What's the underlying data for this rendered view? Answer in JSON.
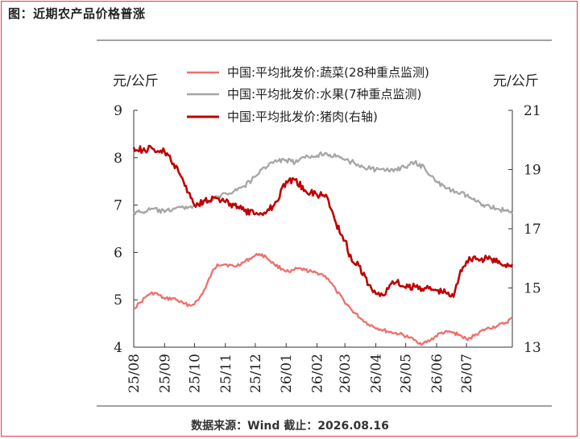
{
  "header": {
    "title": "图：近期农产品价格普涨"
  },
  "footer": {
    "source": "数据来源：Wind 截止：2026.08.16"
  },
  "colors": {
    "border": "#e8373b",
    "vegetables": "#ef6f6c",
    "fruit": "#a6a6a6",
    "pork": "#c00000"
  },
  "chart_data": {
    "type": "line",
    "title": "",
    "left_unit": "元/公斤",
    "right_unit": "元/公斤",
    "y_left": {
      "min": 4,
      "max": 9,
      "ticks": [
        "4",
        "5",
        "6",
        "7",
        "8",
        "9"
      ]
    },
    "y_right": {
      "min": 13,
      "max": 21,
      "ticks": [
        "13",
        "15",
        "17",
        "19",
        "21"
      ]
    },
    "x_ticks": [
      "25/08",
      "25/09",
      "25/10",
      "25/11",
      "25/12",
      "26/01",
      "26/02",
      "26/03",
      "26/04",
      "26/05",
      "26/06",
      "26/07"
    ],
    "legend_position": "top",
    "series": [
      {
        "name": "中国:平均批发价:蔬菜(28种重点监测)",
        "axis": "left",
        "color": "#ef6f6c",
        "points": [
          [
            "2025-08-01",
            4.82
          ],
          [
            "2025-08-08",
            4.95
          ],
          [
            "2025-08-15",
            5.1
          ],
          [
            "2025-08-22",
            5.15
          ],
          [
            "2025-09-01",
            5.02
          ],
          [
            "2025-09-10",
            5.03
          ],
          [
            "2025-09-20",
            4.92
          ],
          [
            "2025-09-28",
            4.88
          ],
          [
            "2025-10-05",
            5.0
          ],
          [
            "2025-10-12",
            5.25
          ],
          [
            "2025-10-18",
            5.55
          ],
          [
            "2025-10-24",
            5.75
          ],
          [
            "2025-11-01",
            5.75
          ],
          [
            "2025-11-10",
            5.7
          ],
          [
            "2025-11-20",
            5.8
          ],
          [
            "2025-11-28",
            5.9
          ],
          [
            "2025-12-05",
            5.97
          ],
          [
            "2025-12-12",
            5.9
          ],
          [
            "2025-12-20",
            5.75
          ],
          [
            "2025-12-28",
            5.65
          ],
          [
            "2026-01-05",
            5.58
          ],
          [
            "2026-01-12",
            5.66
          ],
          [
            "2026-01-20",
            5.63
          ],
          [
            "2026-01-28",
            5.58
          ],
          [
            "2026-02-05",
            5.55
          ],
          [
            "2026-02-12",
            5.45
          ],
          [
            "2026-02-20",
            5.2
          ],
          [
            "2026-02-28",
            4.98
          ],
          [
            "2026-03-08",
            4.78
          ],
          [
            "2026-03-16",
            4.62
          ],
          [
            "2026-03-25",
            4.48
          ],
          [
            "2026-04-05",
            4.38
          ],
          [
            "2026-04-15",
            4.32
          ],
          [
            "2026-04-25",
            4.28
          ],
          [
            "2026-05-05",
            4.2
          ],
          [
            "2026-05-12",
            4.12
          ],
          [
            "2026-05-18",
            4.07
          ],
          [
            "2026-05-26",
            4.15
          ],
          [
            "2026-06-05",
            4.3
          ],
          [
            "2026-06-15",
            4.32
          ],
          [
            "2026-06-25",
            4.25
          ],
          [
            "2026-07-02",
            4.15
          ],
          [
            "2026-07-10",
            4.27
          ],
          [
            "2026-07-20",
            4.38
          ],
          [
            "2026-08-01",
            4.45
          ],
          [
            "2026-08-10",
            4.52
          ],
          [
            "2026-08-16",
            4.62
          ]
        ]
      },
      {
        "name": "中国:平均批发价:水果(7种重点监测)",
        "axis": "left",
        "color": "#a6a6a6",
        "points": [
          [
            "2025-08-01",
            6.85
          ],
          [
            "2025-08-10",
            6.85
          ],
          [
            "2025-08-20",
            6.92
          ],
          [
            "2025-09-01",
            6.85
          ],
          [
            "2025-09-10",
            6.93
          ],
          [
            "2025-09-20",
            6.95
          ],
          [
            "2025-10-01",
            6.98
          ],
          [
            "2025-10-10",
            7.02
          ],
          [
            "2025-10-20",
            7.12
          ],
          [
            "2025-11-01",
            7.25
          ],
          [
            "2025-11-10",
            7.3
          ],
          [
            "2025-11-20",
            7.4
          ],
          [
            "2025-12-01",
            7.6
          ],
          [
            "2025-12-10",
            7.8
          ],
          [
            "2025-12-20",
            7.92
          ],
          [
            "2026-01-01",
            7.95
          ],
          [
            "2026-01-10",
            7.9
          ],
          [
            "2026-01-20",
            8.0
          ],
          [
            "2026-02-01",
            8.05
          ],
          [
            "2026-02-10",
            8.1
          ],
          [
            "2026-02-20",
            8.02
          ],
          [
            "2026-03-01",
            7.95
          ],
          [
            "2026-03-10",
            7.9
          ],
          [
            "2026-03-20",
            7.8
          ],
          [
            "2026-04-01",
            7.75
          ],
          [
            "2026-04-10",
            7.72
          ],
          [
            "2026-04-20",
            7.76
          ],
          [
            "2026-05-01",
            7.8
          ],
          [
            "2026-05-10",
            7.9
          ],
          [
            "2026-05-20",
            7.78
          ],
          [
            "2026-06-01",
            7.5
          ],
          [
            "2026-06-10",
            7.35
          ],
          [
            "2026-06-20",
            7.28
          ],
          [
            "2026-07-01",
            7.2
          ],
          [
            "2026-07-10",
            7.08
          ],
          [
            "2026-07-20",
            7.0
          ],
          [
            "2026-08-01",
            6.92
          ],
          [
            "2026-08-10",
            6.88
          ],
          [
            "2026-08-16",
            6.82
          ]
        ]
      },
      {
        "name": "中国:平均批发价:猪肉(右轴)",
        "axis": "right",
        "color": "#c00000",
        "points": [
          [
            "2025-08-01",
            19.75
          ],
          [
            "2025-08-10",
            19.65
          ],
          [
            "2025-08-20",
            19.7
          ],
          [
            "2025-09-01",
            19.6
          ],
          [
            "2025-09-10",
            19.2
          ],
          [
            "2025-09-20",
            18.6
          ],
          [
            "2025-10-01",
            17.8
          ],
          [
            "2025-10-10",
            17.95
          ],
          [
            "2025-10-20",
            18.05
          ],
          [
            "2025-11-01",
            17.9
          ],
          [
            "2025-11-10",
            17.8
          ],
          [
            "2025-11-20",
            17.6
          ],
          [
            "2025-12-01",
            17.5
          ],
          [
            "2025-12-10",
            17.55
          ],
          [
            "2025-12-20",
            17.8
          ],
          [
            "2026-01-01",
            18.6
          ],
          [
            "2026-01-10",
            18.65
          ],
          [
            "2026-01-20",
            18.3
          ],
          [
            "2026-02-01",
            18.15
          ],
          [
            "2026-02-10",
            18.15
          ],
          [
            "2026-02-20",
            17.2
          ],
          [
            "2026-03-01",
            16.6
          ],
          [
            "2026-03-08",
            15.9
          ],
          [
            "2026-03-15",
            15.75
          ],
          [
            "2026-03-25",
            15.1
          ],
          [
            "2026-04-01",
            14.8
          ],
          [
            "2026-04-08",
            14.75
          ],
          [
            "2026-04-15",
            15.1
          ],
          [
            "2026-04-22",
            15.2
          ],
          [
            "2026-05-01",
            15.0
          ],
          [
            "2026-05-10",
            15.05
          ],
          [
            "2026-05-20",
            15.0
          ],
          [
            "2026-06-01",
            14.92
          ],
          [
            "2026-06-10",
            14.85
          ],
          [
            "2026-06-18",
            14.7
          ],
          [
            "2026-06-25",
            15.6
          ],
          [
            "2026-07-01",
            15.9
          ],
          [
            "2026-07-08",
            16.05
          ],
          [
            "2026-07-15",
            15.95
          ],
          [
            "2026-07-25",
            16.0
          ],
          [
            "2026-08-05",
            15.8
          ],
          [
            "2026-08-16",
            15.8
          ]
        ]
      }
    ]
  }
}
